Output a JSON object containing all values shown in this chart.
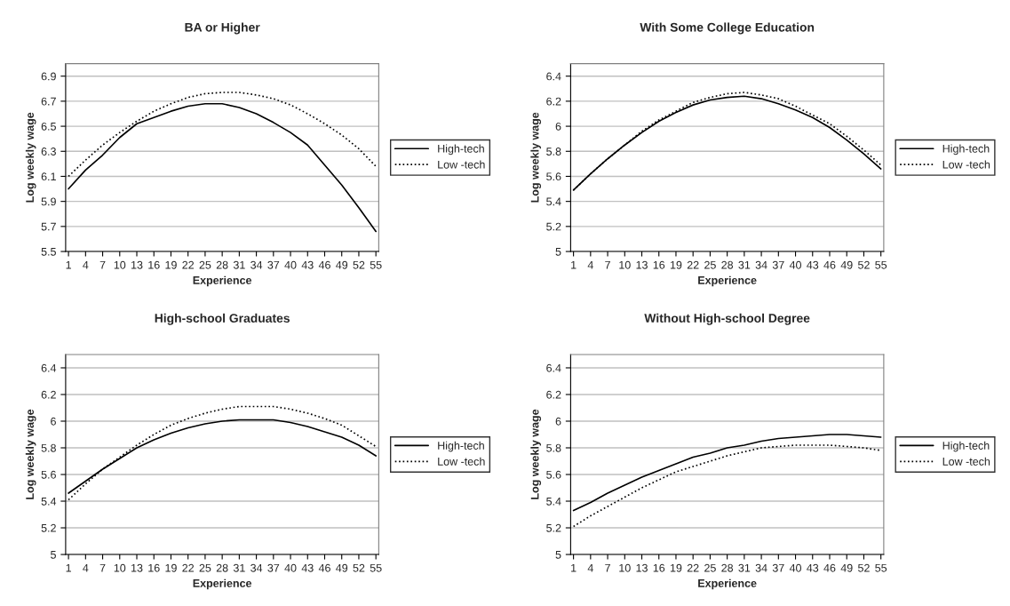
{
  "chart_data": [
    {
      "type": "line",
      "title": "BA or Higher",
      "xlabel": "Experience",
      "ylabel": "Log weekly wage",
      "x": [
        1,
        4,
        7,
        10,
        13,
        16,
        19,
        22,
        25,
        28,
        31,
        34,
        37,
        40,
        43,
        46,
        49,
        52,
        55
      ],
      "xlim": [
        0.5,
        55.5
      ],
      "xticks": [
        1,
        4,
        7,
        10,
        13,
        16,
        19,
        22,
        25,
        28,
        31,
        34,
        37,
        40,
        43,
        46,
        49,
        52,
        55
      ],
      "ylim": [
        5.5,
        7.0
      ],
      "yticks": [
        5.5,
        5.7,
        5.9,
        6.1,
        6.3,
        6.5,
        6.7,
        6.9
      ],
      "grid": "y",
      "legend": "right",
      "series": [
        {
          "name": "High-tech",
          "color": "#000000",
          "line_style": "solid",
          "values": [
            6.0,
            6.15,
            6.27,
            6.41,
            6.52,
            6.57,
            6.62,
            6.66,
            6.68,
            6.68,
            6.65,
            6.6,
            6.53,
            6.45,
            6.35,
            6.19,
            6.03,
            5.85,
            5.66
          ]
        },
        {
          "name": "Low -tech",
          "color": "#000000",
          "line_style": "dotted",
          "values": [
            6.1,
            6.23,
            6.35,
            6.45,
            6.54,
            6.62,
            6.68,
            6.73,
            6.76,
            6.77,
            6.77,
            6.75,
            6.72,
            6.67,
            6.6,
            6.52,
            6.43,
            6.32,
            6.18
          ]
        }
      ]
    },
    {
      "type": "line",
      "title": "With Some College Education",
      "xlabel": "Experience",
      "ylabel": "Log weekly wage",
      "x": [
        1,
        4,
        7,
        10,
        13,
        16,
        19,
        22,
        25,
        28,
        31,
        34,
        37,
        40,
        43,
        46,
        49,
        52,
        55
      ],
      "xlim": [
        0.5,
        55.5
      ],
      "xticks": [
        1,
        4,
        7,
        10,
        13,
        16,
        19,
        22,
        25,
        28,
        31,
        34,
        37,
        40,
        43,
        46,
        49,
        52,
        55
      ],
      "ylim": [
        5,
        6.5
      ],
      "yticks": [
        5,
        5.2,
        5.4,
        5.6,
        5.8,
        6,
        6.2,
        6.4
      ],
      "grid": "y",
      "legend": "right",
      "series": [
        {
          "name": "High-tech",
          "color": "#000000",
          "line_style": "solid",
          "values": [
            5.49,
            5.62,
            5.74,
            5.85,
            5.95,
            6.04,
            6.11,
            6.17,
            6.21,
            6.23,
            6.24,
            6.22,
            6.18,
            6.13,
            6.07,
            5.99,
            5.89,
            5.78,
            5.66
          ]
        },
        {
          "name": "Low -tech",
          "color": "#000000",
          "line_style": "dotted",
          "values": [
            5.49,
            5.62,
            5.74,
            5.85,
            5.96,
            6.05,
            6.12,
            6.19,
            6.23,
            6.26,
            6.27,
            6.25,
            6.22,
            6.16,
            6.09,
            6.02,
            5.92,
            5.81,
            5.69
          ]
        }
      ]
    },
    {
      "type": "line",
      "title": "High-school Graduates",
      "xlabel": "Experience",
      "ylabel": "Log weekly wage",
      "x": [
        1,
        4,
        7,
        10,
        13,
        16,
        19,
        22,
        25,
        28,
        31,
        34,
        37,
        40,
        43,
        46,
        49,
        52,
        55
      ],
      "xlim": [
        0.5,
        55.5
      ],
      "xticks": [
        1,
        4,
        7,
        10,
        13,
        16,
        19,
        22,
        25,
        28,
        31,
        34,
        37,
        40,
        43,
        46,
        49,
        52,
        55
      ],
      "ylim": [
        5,
        6.5
      ],
      "yticks": [
        5,
        5.2,
        5.4,
        5.6,
        5.8,
        6,
        6.2,
        6.4
      ],
      "grid": "y",
      "legend": "right",
      "series": [
        {
          "name": "High-tech",
          "color": "#000000",
          "line_style": "solid",
          "values": [
            5.46,
            5.55,
            5.64,
            5.72,
            5.8,
            5.86,
            5.91,
            5.95,
            5.98,
            6.0,
            6.01,
            6.01,
            6.01,
            5.99,
            5.96,
            5.92,
            5.88,
            5.82,
            5.74
          ]
        },
        {
          "name": "Low -tech",
          "color": "#000000",
          "line_style": "dotted",
          "values": [
            5.41,
            5.53,
            5.64,
            5.73,
            5.82,
            5.9,
            5.97,
            6.02,
            6.06,
            6.09,
            6.11,
            6.11,
            6.11,
            6.09,
            6.06,
            6.02,
            5.97,
            5.89,
            5.81
          ]
        }
      ]
    },
    {
      "type": "line",
      "title": "Without High-school Degree",
      "xlabel": "Experience",
      "ylabel": "Log weekly wage",
      "x": [
        1,
        4,
        7,
        10,
        13,
        16,
        19,
        22,
        25,
        28,
        31,
        34,
        37,
        40,
        43,
        46,
        49,
        52,
        55
      ],
      "xlim": [
        0.5,
        55.5
      ],
      "xticks": [
        1,
        4,
        7,
        10,
        13,
        16,
        19,
        22,
        25,
        28,
        31,
        34,
        37,
        40,
        43,
        46,
        49,
        52,
        55
      ],
      "ylim": [
        5,
        6.5
      ],
      "yticks": [
        5,
        5.2,
        5.4,
        5.6,
        5.8,
        6,
        6.2,
        6.4
      ],
      "grid": "y",
      "legend": "right",
      "series": [
        {
          "name": "High-tech",
          "color": "#000000",
          "line_style": "solid",
          "values": [
            5.33,
            5.39,
            5.46,
            5.52,
            5.58,
            5.63,
            5.68,
            5.73,
            5.76,
            5.8,
            5.82,
            5.85,
            5.87,
            5.88,
            5.89,
            5.9,
            5.9,
            5.89,
            5.88
          ]
        },
        {
          "name": "Low -tech",
          "color": "#000000",
          "line_style": "dotted",
          "values": [
            5.21,
            5.29,
            5.36,
            5.43,
            5.5,
            5.56,
            5.62,
            5.66,
            5.7,
            5.74,
            5.77,
            5.8,
            5.81,
            5.82,
            5.82,
            5.82,
            5.81,
            5.8,
            5.78
          ]
        }
      ]
    }
  ]
}
